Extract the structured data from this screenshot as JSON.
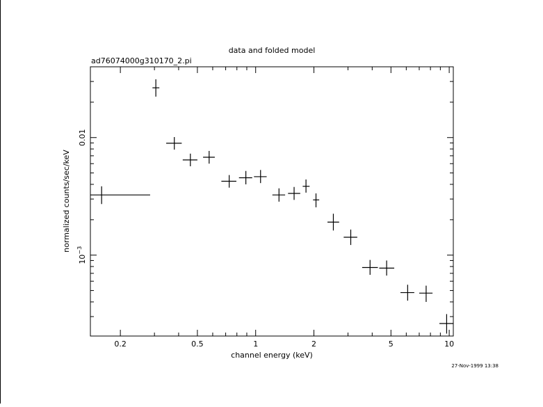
{
  "chart_data": {
    "type": "scatter",
    "title": "data and folded model",
    "subtitle": "ad76074000g310170_2.pi",
    "xlabel": "channel energy (keV)",
    "ylabel": "normalized counts/sec/keV",
    "timestamp": "27-Nov-1999 13:38",
    "x_scale": "log",
    "y_scale": "log",
    "xlim": [
      0.14,
      10.5
    ],
    "ylim": [
      0.000205,
      0.04
    ],
    "x_ticks": [
      {
        "value": 0.2,
        "label": "0.2"
      },
      {
        "value": 0.5,
        "label": "0.5"
      },
      {
        "value": 1,
        "label": "1"
      },
      {
        "value": 2,
        "label": "2"
      },
      {
        "value": 5,
        "label": "5"
      },
      {
        "value": 10,
        "label": "10"
      }
    ],
    "y_ticks": [
      {
        "value": 0.01,
        "label": "0.01",
        "sup": ""
      },
      {
        "value": 0.001,
        "label": "10",
        "sup": "−3"
      }
    ],
    "grid": false,
    "points": [
      {
        "x": 0.16,
        "xlo": 0.14,
        "xhi": 0.285,
        "y": 0.00325,
        "ylo": 0.00272,
        "yhi": 0.00385
      },
      {
        "x": 0.305,
        "xlo": 0.293,
        "xhi": 0.318,
        "y": 0.0265,
        "ylo": 0.0223,
        "yhi": 0.0313
      },
      {
        "x": 0.38,
        "xlo": 0.345,
        "xhi": 0.415,
        "y": 0.00895,
        "ylo": 0.0079,
        "yhi": 0.0101
      },
      {
        "x": 0.46,
        "xlo": 0.42,
        "xhi": 0.5,
        "y": 0.00645,
        "ylo": 0.0057,
        "yhi": 0.0073
      },
      {
        "x": 0.575,
        "xlo": 0.535,
        "xhi": 0.615,
        "y": 0.0068,
        "ylo": 0.006,
        "yhi": 0.0077
      },
      {
        "x": 0.73,
        "xlo": 0.665,
        "xhi": 0.795,
        "y": 0.00425,
        "ylo": 0.00375,
        "yhi": 0.0048
      },
      {
        "x": 0.89,
        "xlo": 0.82,
        "xhi": 0.96,
        "y": 0.00455,
        "ylo": 0.004,
        "yhi": 0.0052
      },
      {
        "x": 1.06,
        "xlo": 0.98,
        "xhi": 1.14,
        "y": 0.00465,
        "ylo": 0.0041,
        "yhi": 0.0053
      },
      {
        "x": 1.32,
        "xlo": 1.22,
        "xhi": 1.42,
        "y": 0.00325,
        "ylo": 0.00285,
        "yhi": 0.0037
      },
      {
        "x": 1.58,
        "xlo": 1.47,
        "xhi": 1.7,
        "y": 0.00335,
        "ylo": 0.00295,
        "yhi": 0.0038
      },
      {
        "x": 1.82,
        "xlo": 1.75,
        "xhi": 1.9,
        "y": 0.00385,
        "ylo": 0.0034,
        "yhi": 0.0044
      },
      {
        "x": 2.05,
        "xlo": 1.98,
        "xhi": 2.13,
        "y": 0.00295,
        "ylo": 0.00255,
        "yhi": 0.00335
      },
      {
        "x": 2.52,
        "xlo": 2.35,
        "xhi": 2.7,
        "y": 0.00191,
        "ylo": 0.00162,
        "yhi": 0.00225
      },
      {
        "x": 3.1,
        "xlo": 2.85,
        "xhi": 3.35,
        "y": 0.00142,
        "ylo": 0.00122,
        "yhi": 0.00165
      },
      {
        "x": 3.9,
        "xlo": 3.55,
        "xhi": 4.28,
        "y": 0.000785,
        "ylo": 0.00068,
        "yhi": 0.00091
      },
      {
        "x": 4.75,
        "xlo": 4.35,
        "xhi": 5.2,
        "y": 0.000775,
        "ylo": 0.00067,
        "yhi": 0.0009
      },
      {
        "x": 6.1,
        "xlo": 5.6,
        "xhi": 6.6,
        "y": 0.00048,
        "ylo": 0.00041,
        "yhi": 0.00056
      },
      {
        "x": 7.6,
        "xlo": 7.0,
        "xhi": 8.2,
        "y": 0.000475,
        "ylo": 0.0004,
        "yhi": 0.00055
      },
      {
        "x": 9.7,
        "xlo": 8.9,
        "xhi": 10.5,
        "y": 0.000262,
        "ylo": 0.000215,
        "yhi": 0.000315
      }
    ]
  }
}
